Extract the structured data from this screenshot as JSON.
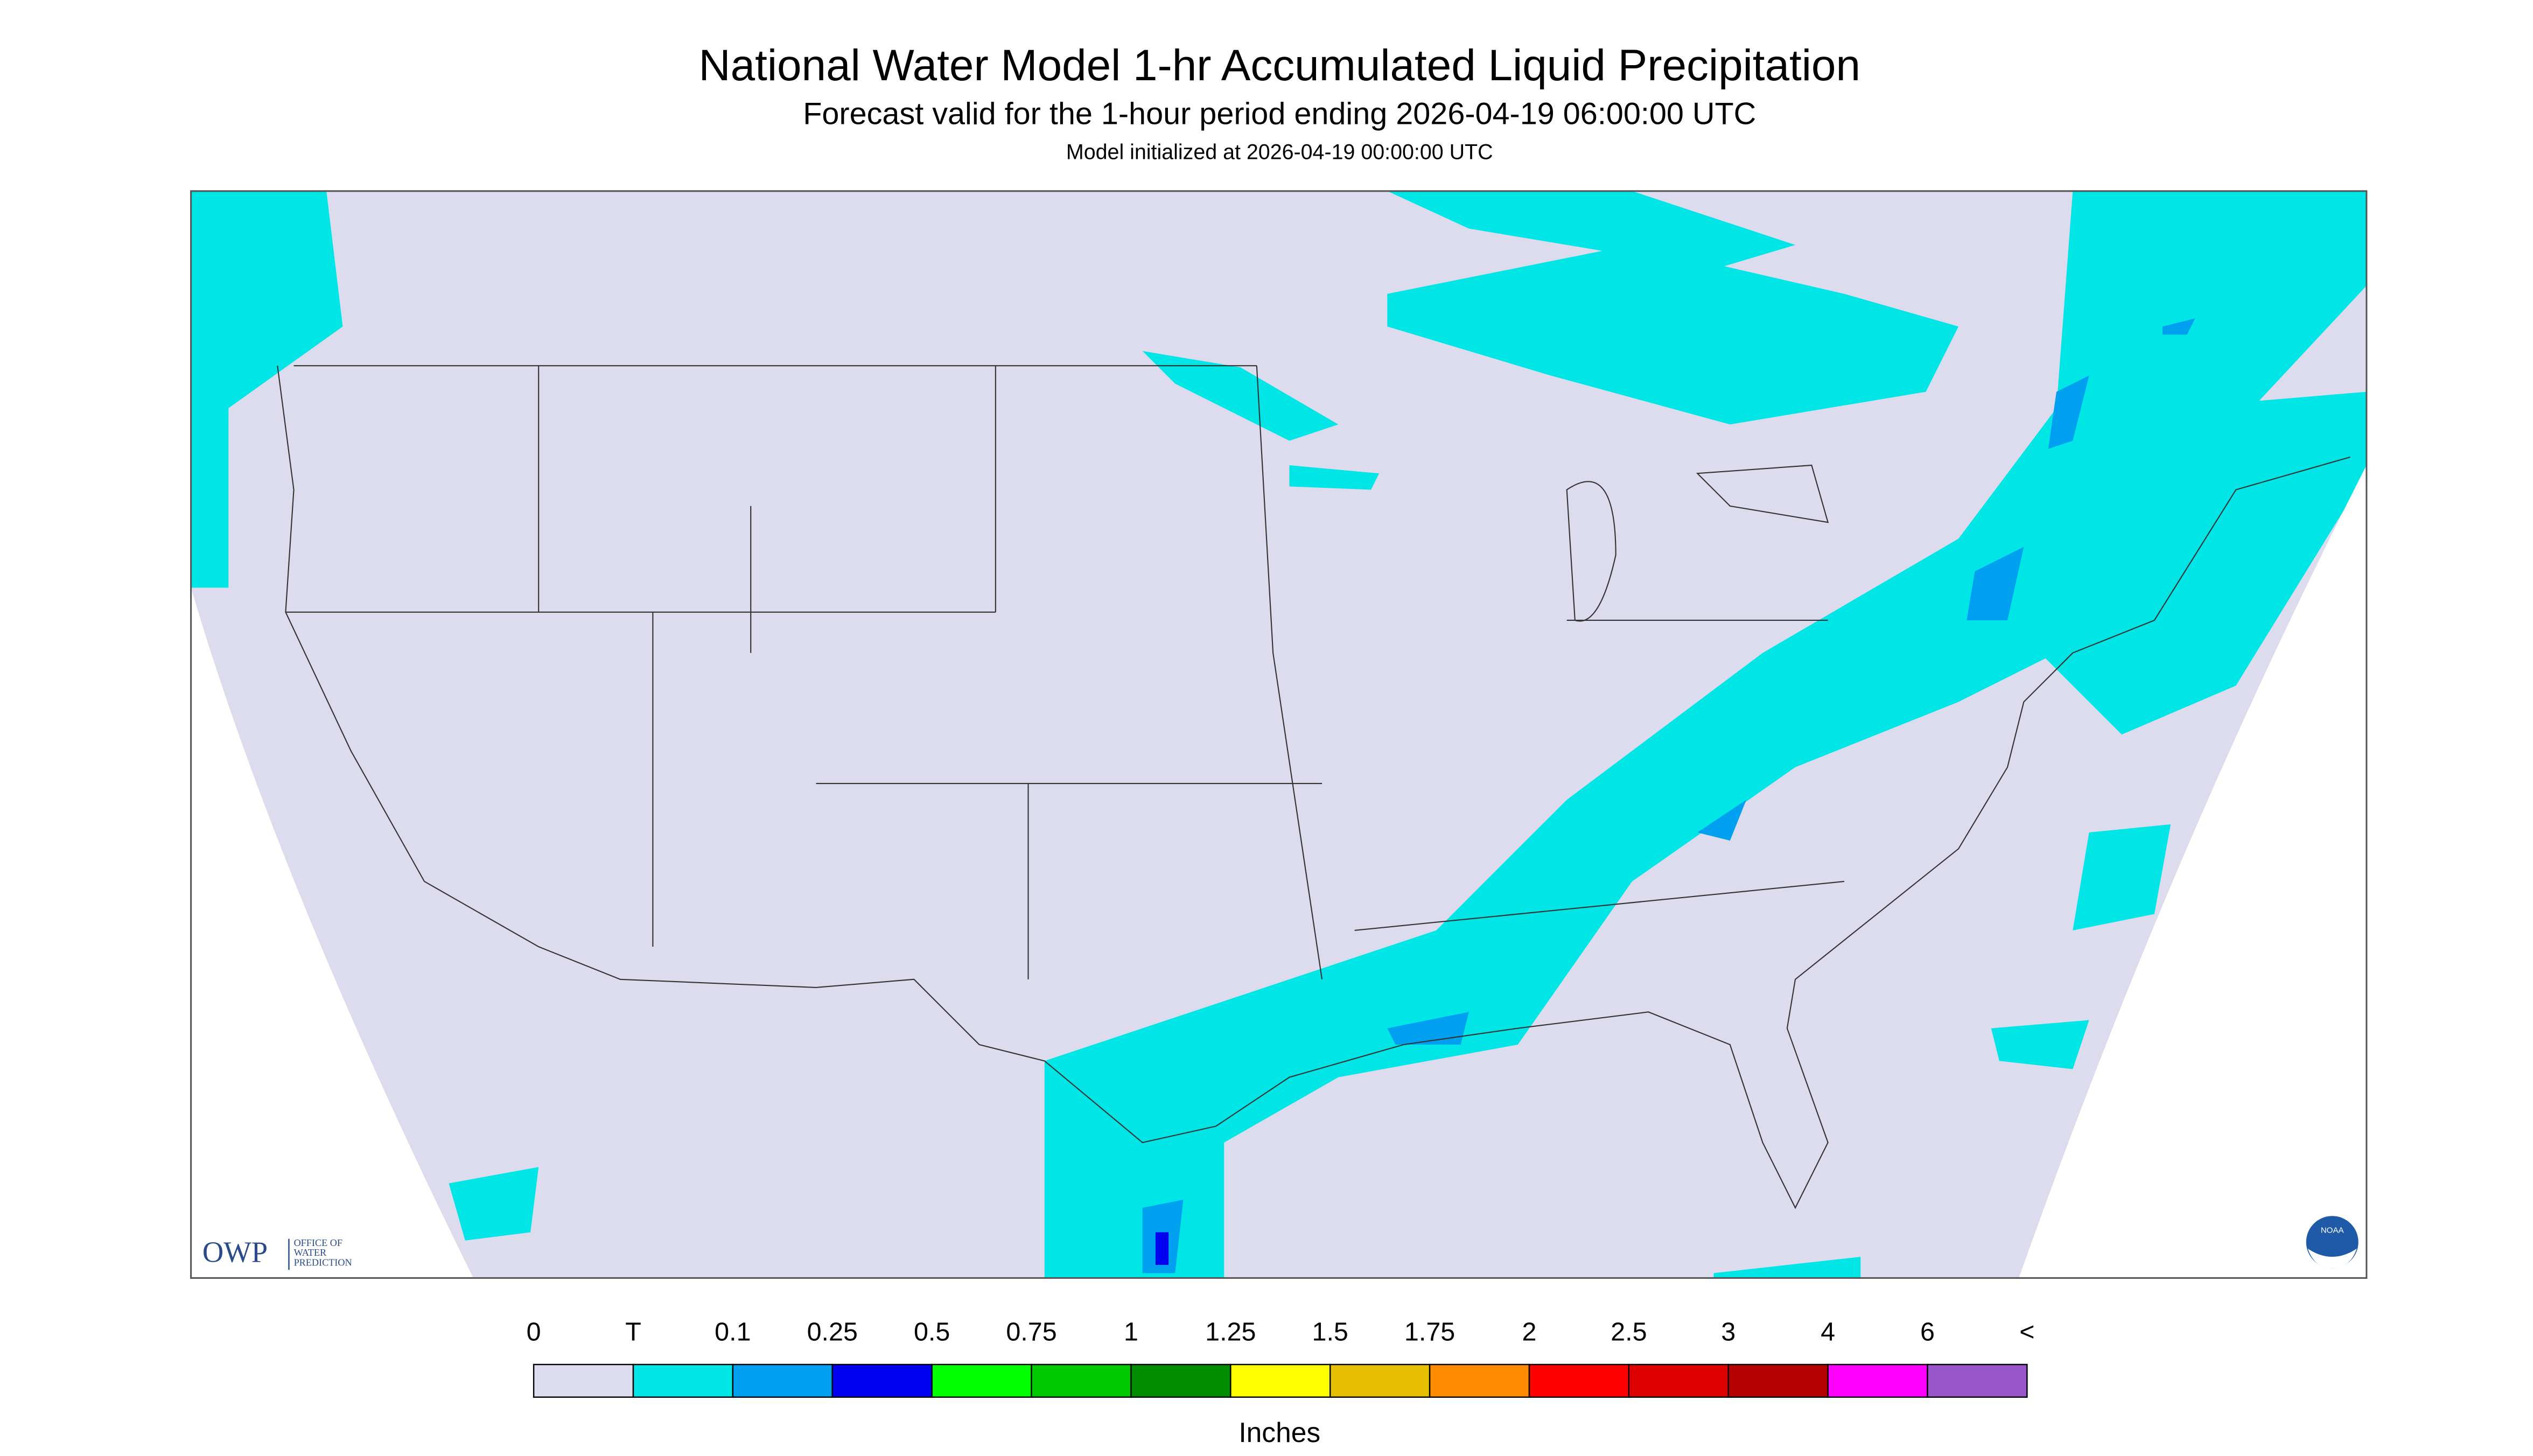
{
  "header": {
    "title": "National Water Model 1-hr Accumulated Liquid Precipitation",
    "subtitle": "Forecast valid for the 1-hour period ending 2026-04-19 06:00:00 UTC",
    "init": "Model initialized at 2026-04-19 00:00:00 UTC"
  },
  "logos": {
    "owp": "OWP",
    "owp_text": [
      "OFFICE OF",
      "WATER",
      "PREDICTION"
    ],
    "noaa": "NOAA"
  },
  "legend": {
    "labels": [
      "0",
      "T",
      "0.1",
      "0.25",
      "0.5",
      "0.75",
      "1",
      "1.25",
      "1.5",
      "1.75",
      "2",
      "2.5",
      "3",
      "4",
      "6",
      "<"
    ],
    "colors": [
      "#dcdcee",
      "#00e6e6",
      "#00a0f0",
      "#0000f0",
      "#00ff00",
      "#00c800",
      "#008c00",
      "#ffff00",
      "#e6c000",
      "#ff8c00",
      "#ff0000",
      "#dc0000",
      "#b40000",
      "#ff00ff",
      "#9955c9"
    ],
    "units": "Inches"
  }
}
